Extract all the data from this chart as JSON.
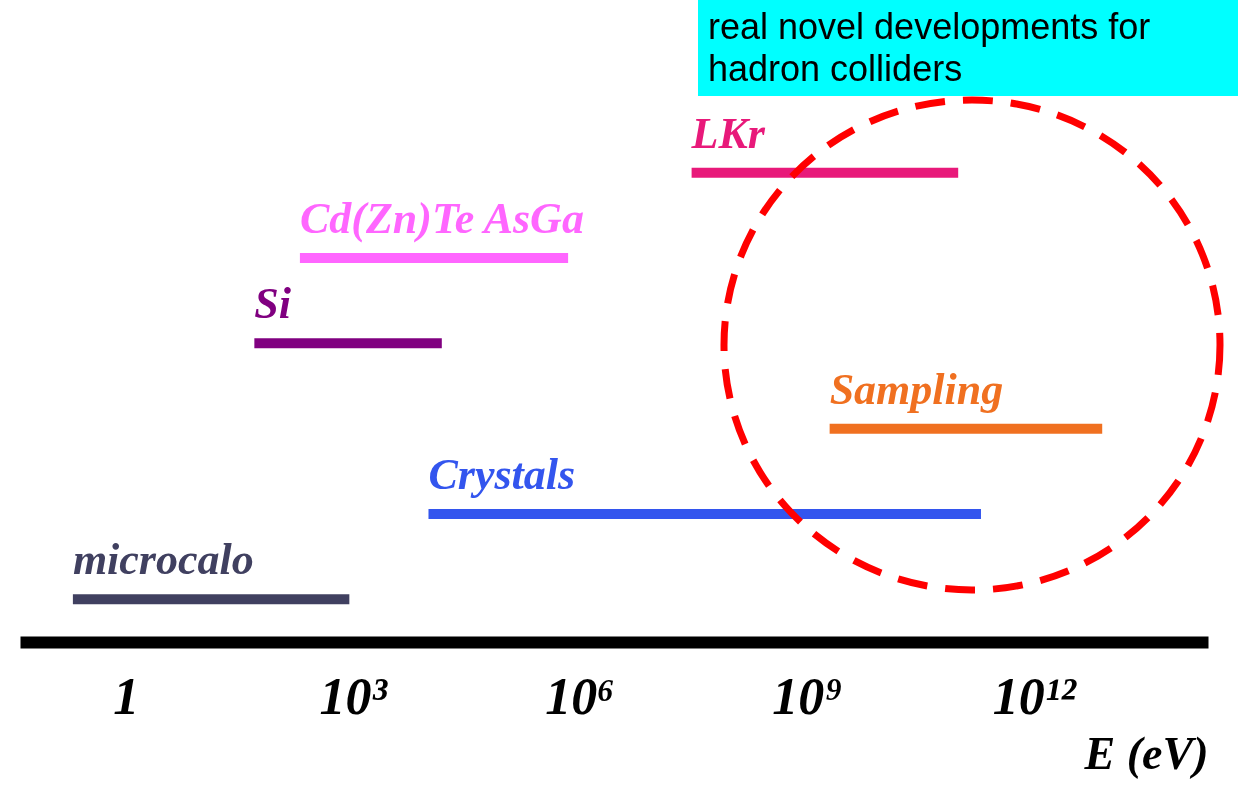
{
  "chart_data": {
    "type": "bar",
    "orientation": "horizontal",
    "log": "x",
    "xlabel": "E (eV)",
    "categories": [
      "LKr",
      "Cd(Zn)Te AsGa",
      "Si",
      "Sampling",
      "Crystals",
      "microcalo"
    ],
    "base": [
      30000000,
      200,
      50,
      2000000000,
      10000,
      0.2
    ],
    "values": [
      99970000000,
      699800,
      14950,
      7998000000000,
      199999990000,
      899.8
    ],
    "colors": [
      "#e8197a",
      "#ff66ff",
      "#800080",
      "#f07020",
      "#3355ee",
      "#404060"
    ],
    "xlim": [
      0.04,
      200000000000000
    ],
    "xticks": [
      1,
      {
        "value": 1000,
        "label": "10³"
      },
      {
        "value": 1000000,
        "label": "10⁶"
      },
      {
        "value": 1000000000,
        "label": "10⁹"
      },
      {
        "value": 1000000000000,
        "label": "10¹²"
      }
    ],
    "tick_labels": "x",
    "annotations": [
      "real novel developments for hadron colliders"
    ]
  }
}
